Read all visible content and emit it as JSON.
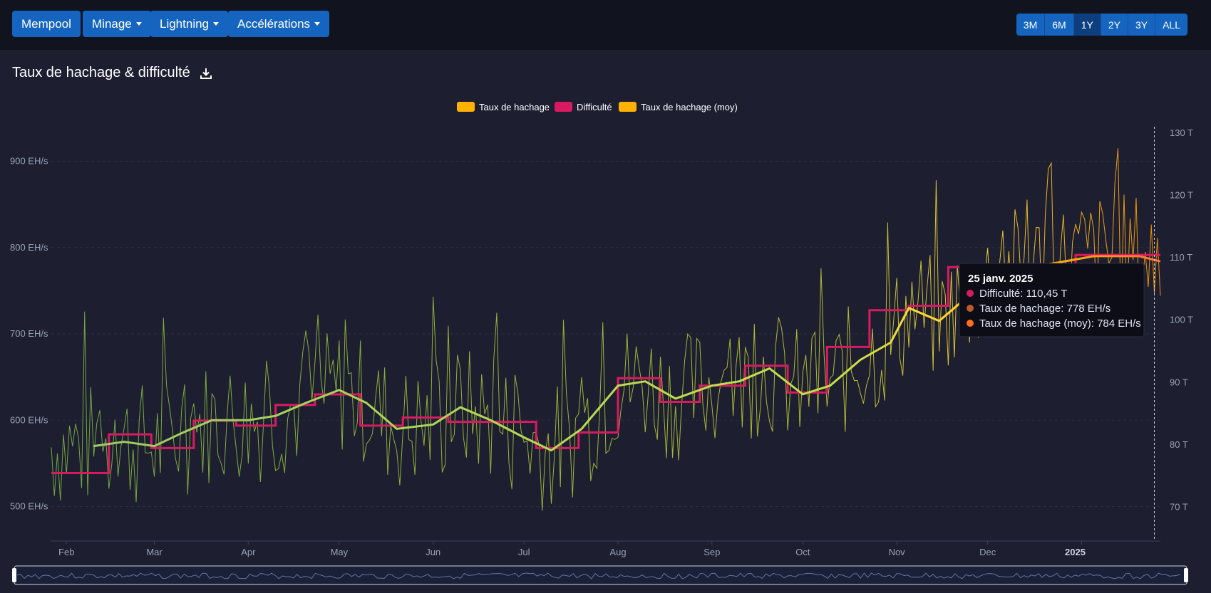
{
  "nav": {
    "mempool": "Mempool",
    "minage": "Minage",
    "lightning": "Lightning",
    "accelerations": "Accélérations"
  },
  "ranges": [
    "3M",
    "6M",
    "1Y",
    "2Y",
    "3Y",
    "ALL"
  ],
  "active_range": "1Y",
  "page_title": "Taux de hachage & difficulté",
  "colors": {
    "background": "#1d1f31",
    "difficulty": "#d81b60",
    "hashrate": "#fdd835",
    "hashrate_avg": "#ffb300",
    "grid": "#2a2d45"
  },
  "chart_data": {
    "type": "line",
    "legend": [
      "Taux de hachage",
      "Difficulté",
      "Taux de hachage (moy)"
    ],
    "legend_position": "top-center",
    "x_tick_labels": [
      "Feb",
      "Mar",
      "Apr",
      "May",
      "Jun",
      "Jul",
      "Aug",
      "Sep",
      "Oct",
      "Nov",
      "Dec",
      "2025"
    ],
    "y_left": {
      "unit": "EH/s",
      "ticks": [
        500,
        600,
        700,
        800,
        900
      ],
      "range": [
        460,
        940
      ]
    },
    "y_right": {
      "unit": "T",
      "ticks": [
        70,
        80,
        90,
        100,
        110,
        120,
        130
      ],
      "range": [
        64.6,
        131
      ]
    },
    "x_range": [
      "2024-01-27",
      "2025-01-27"
    ],
    "difficulty_steps": [
      {
        "from": "2024-01-27",
        "to": "2024-02-15",
        "value": 75.5
      },
      {
        "from": "2024-02-15",
        "to": "2024-02-29",
        "value": 81.7
      },
      {
        "from": "2024-02-29",
        "to": "2024-03-14",
        "value": 79.5
      },
      {
        "from": "2024-03-14",
        "to": "2024-03-28",
        "value": 83.9
      },
      {
        "from": "2024-03-28",
        "to": "2024-04-10",
        "value": 83.1
      },
      {
        "from": "2024-04-10",
        "to": "2024-04-23",
        "value": 86.4
      },
      {
        "from": "2024-04-23",
        "to": "2024-05-08",
        "value": 88.1
      },
      {
        "from": "2024-05-08",
        "to": "2024-05-22",
        "value": 83.1
      },
      {
        "from": "2024-05-22",
        "to": "2024-06-06",
        "value": 84.4
      },
      {
        "from": "2024-06-06",
        "to": "2024-06-20",
        "value": 83.7
      },
      {
        "from": "2024-06-20",
        "to": "2024-07-05",
        "value": 83.7
      },
      {
        "from": "2024-07-05",
        "to": "2024-07-19",
        "value": 79.5
      },
      {
        "from": "2024-07-19",
        "to": "2024-08-01",
        "value": 82.0
      },
      {
        "from": "2024-08-01",
        "to": "2024-08-15",
        "value": 90.7
      },
      {
        "from": "2024-08-15",
        "to": "2024-08-28",
        "value": 86.9
      },
      {
        "from": "2024-08-28",
        "to": "2024-09-12",
        "value": 89.5
      },
      {
        "from": "2024-09-12",
        "to": "2024-09-26",
        "value": 92.7
      },
      {
        "from": "2024-09-26",
        "to": "2024-10-09",
        "value": 88.4
      },
      {
        "from": "2024-10-09",
        "to": "2024-10-23",
        "value": 95.7
      },
      {
        "from": "2024-10-23",
        "to": "2024-11-05",
        "value": 101.6
      },
      {
        "from": "2024-11-05",
        "to": "2024-11-18",
        "value": 102.3
      },
      {
        "from": "2024-11-18",
        "to": "2024-12-30",
        "value": 108.5
      },
      {
        "from": "2024-12-30",
        "to": "2025-01-27",
        "value": 110.45
      }
    ],
    "hashrate_avg_points": [
      {
        "x": "2024-02-10",
        "y": 570
      },
      {
        "x": "2024-02-20",
        "y": 575
      },
      {
        "x": "2024-03-01",
        "y": 570
      },
      {
        "x": "2024-03-10",
        "y": 585
      },
      {
        "x": "2024-03-20",
        "y": 600
      },
      {
        "x": "2024-04-01",
        "y": 600
      },
      {
        "x": "2024-04-10",
        "y": 605
      },
      {
        "x": "2024-04-20",
        "y": 620
      },
      {
        "x": "2024-05-01",
        "y": 635
      },
      {
        "x": "2024-05-10",
        "y": 620
      },
      {
        "x": "2024-05-20",
        "y": 590
      },
      {
        "x": "2024-06-01",
        "y": 595
      },
      {
        "x": "2024-06-10",
        "y": 615
      },
      {
        "x": "2024-06-20",
        "y": 600
      },
      {
        "x": "2024-07-01",
        "y": 580
      },
      {
        "x": "2024-07-10",
        "y": 565
      },
      {
        "x": "2024-07-20",
        "y": 590
      },
      {
        "x": "2024-08-01",
        "y": 640
      },
      {
        "x": "2024-08-10",
        "y": 645
      },
      {
        "x": "2024-08-20",
        "y": 625
      },
      {
        "x": "2024-09-01",
        "y": 640
      },
      {
        "x": "2024-09-10",
        "y": 645
      },
      {
        "x": "2024-09-20",
        "y": 660
      },
      {
        "x": "2024-10-01",
        "y": 630
      },
      {
        "x": "2024-10-10",
        "y": 640
      },
      {
        "x": "2024-10-20",
        "y": 670
      },
      {
        "x": "2024-10-30",
        "y": 690
      },
      {
        "x": "2024-11-05",
        "y": 730
      },
      {
        "x": "2024-11-15",
        "y": 715
      },
      {
        "x": "2024-11-25",
        "y": 745
      },
      {
        "x": "2024-12-05",
        "y": 770
      },
      {
        "x": "2024-12-20",
        "y": 780
      },
      {
        "x": "2025-01-05",
        "y": 790
      },
      {
        "x": "2025-01-20",
        "y": 790
      },
      {
        "x": "2025-01-27",
        "y": 784
      }
    ],
    "tooltip": {
      "date": "25 janv. 2025",
      "items": [
        {
          "label": "Difficulté: 110,45 T",
          "color": "#d81b60"
        },
        {
          "label": "Taux de hachage: 778 EH/s",
          "color": "#bf5a2a"
        },
        {
          "label": "Taux de hachage (moy): 784 EH/s",
          "color": "#ff6d1f"
        }
      ]
    }
  }
}
